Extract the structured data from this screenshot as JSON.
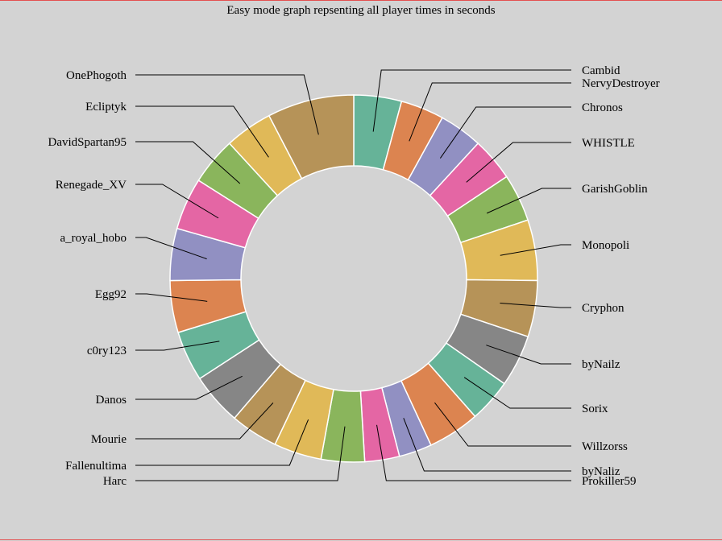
{
  "chart_data": {
    "type": "pie",
    "title": "Easy mode graph repsenting all player times in seconds",
    "donut": true,
    "slices": [
      {
        "label": "Cambid",
        "value": 5.5,
        "color": "#66b398"
      },
      {
        "label": "NervyDestroyer",
        "value": 5.0,
        "color": "#dc8450"
      },
      {
        "label": "Chronos",
        "value": 5.0,
        "color": "#9190c2"
      },
      {
        "label": "WHISTLE",
        "value": 5.0,
        "color": "#e466a4"
      },
      {
        "label": "GarishGoblin",
        "value": 5.5,
        "color": "#8ab55c"
      },
      {
        "label": "Monopoli",
        "value": 7.0,
        "color": "#e0b958"
      },
      {
        "label": "Cryphon",
        "value": 6.5,
        "color": "#b69358"
      },
      {
        "label": "byNailz",
        "value": 6.0,
        "color": "#868686"
      },
      {
        "label": "Sorix",
        "value": 5.0,
        "color": "#66b398"
      },
      {
        "label": "Willzorss",
        "value": 6.0,
        "color": "#dc8450"
      },
      {
        "label": "byNaliz",
        "value": 3.8,
        "color": "#9190c2"
      },
      {
        "label": "Prokiller59",
        "value": 4.0,
        "color": "#e466a4"
      },
      {
        "label": "Harc",
        "value": 5.0,
        "color": "#8ab55c"
      },
      {
        "label": "Fallenultima",
        "value": 5.5,
        "color": "#e0b958"
      },
      {
        "label": "Mourie",
        "value": 5.5,
        "color": "#b69358"
      },
      {
        "label": "Danos",
        "value": 6.0,
        "color": "#868686"
      },
      {
        "label": "c0ry123",
        "value": 5.8,
        "color": "#66b398"
      },
      {
        "label": "Egg92",
        "value": 6.0,
        "color": "#dc8450"
      },
      {
        "label": "a_royal_hobo",
        "value": 6.0,
        "color": "#9190c2"
      },
      {
        "label": "Renegade_XV",
        "value": 6.0,
        "color": "#e466a4"
      },
      {
        "label": "DavidSpartan95",
        "value": 5.5,
        "color": "#8ab55c"
      },
      {
        "label": "Ecliptyk",
        "value": 5.5,
        "color": "#e0b958"
      },
      {
        "label": "OnePhogoth",
        "value": 10.0,
        "color": "#b69358"
      }
    ]
  }
}
